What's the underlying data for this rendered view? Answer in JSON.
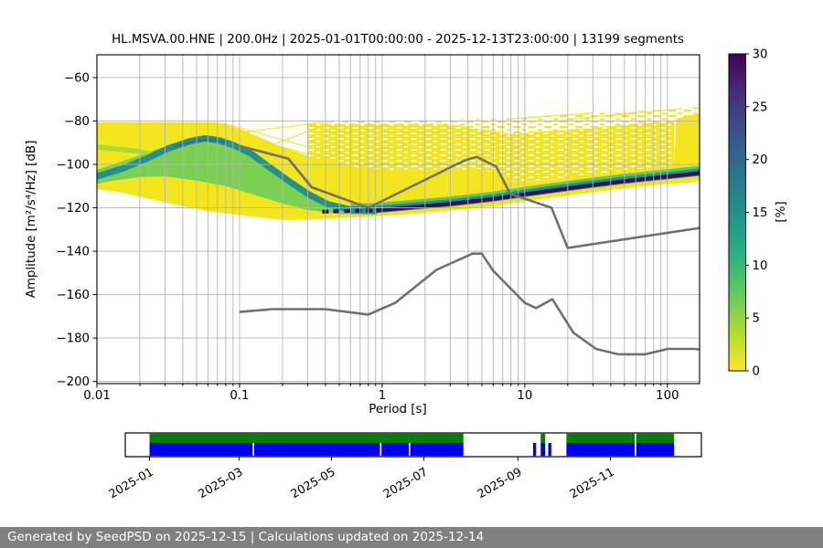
{
  "chart_data": {
    "type": "heatmap",
    "title": "HL.MSVA.00.HNE | 200.0Hz | 2025-01-01T00:00:00 - 2025-12-13T23:00:00 | 13199 segments",
    "xlabel": "Period [s]",
    "ylabel": "Amplitude [m²/s⁴/Hz] [dB]",
    "xscale": "log",
    "xlim": [
      0.01,
      168
    ],
    "ylim": [
      -201,
      -49.5
    ],
    "xticks": [
      {
        "v": 0.01,
        "label": "0.01"
      },
      {
        "v": 0.1,
        "label": "0.1"
      },
      {
        "v": 1,
        "label": "1"
      },
      {
        "v": 10,
        "label": "10"
      },
      {
        "v": 100,
        "label": "100"
      }
    ],
    "yticks": [
      {
        "v": -60,
        "label": "−60"
      },
      {
        "v": -80,
        "label": "−80"
      },
      {
        "v": -100,
        "label": "−100"
      },
      {
        "v": -120,
        "label": "−120"
      },
      {
        "v": -140,
        "label": "−140"
      },
      {
        "v": -160,
        "label": "−160"
      },
      {
        "v": -180,
        "label": "−180"
      },
      {
        "v": -200,
        "label": "−200"
      }
    ],
    "grid": {
      "vertical": "log major+minor",
      "horizontal": "major",
      "color": "#b3b3b3"
    },
    "colorbar": {
      "label": "[%]",
      "min": 0,
      "max": 30,
      "ticks": [
        {
          "v": 0,
          "label": "0"
        },
        {
          "v": 5,
          "label": "5"
        },
        {
          "v": 10,
          "label": "10"
        },
        {
          "v": 15,
          "label": "15"
        },
        {
          "v": 20,
          "label": "20"
        },
        {
          "v": 25,
          "label": "25"
        },
        {
          "v": 30,
          "label": "30"
        }
      ],
      "colormap": "viridis reversed (0=yellow, 30=dark purple)",
      "stops_top_to_bottom": [
        "#440154",
        "#472d7b",
        "#3b528b",
        "#2c728e",
        "#21918c",
        "#28ae80",
        "#5ec962",
        "#addc30",
        "#fde725"
      ]
    },
    "colors": {
      "yellow": "#f3e61e",
      "green_band": "#5ec962",
      "green_blob": "#7ad151",
      "green_streak": "#a8db34",
      "teal": "#21918c",
      "teal_core": "#287a8c",
      "dark": "#3a0d54",
      "noise_model_line": "#707070"
    },
    "noise_models": {
      "nhnm": [
        [
          0.1,
          -91.5
        ],
        [
          0.22,
          -97.4
        ],
        [
          0.32,
          -110.5
        ],
        [
          0.8,
          -120.0
        ],
        [
          3.8,
          -98.1
        ],
        [
          4.6,
          -96.5
        ],
        [
          6.3,
          -101.0
        ],
        [
          7.9,
          -113.5
        ],
        [
          15.4,
          -120.0
        ],
        [
          20.0,
          -138.5
        ],
        [
          168,
          -129.3
        ]
      ],
      "nlnm": [
        [
          0.1,
          -168.0
        ],
        [
          0.17,
          -166.7
        ],
        [
          0.4,
          -166.7
        ],
        [
          0.8,
          -169.2
        ],
        [
          1.24,
          -163.7
        ],
        [
          2.4,
          -148.6
        ],
        [
          4.3,
          -141.1
        ],
        [
          5.0,
          -141.1
        ],
        [
          6.0,
          -149.0
        ],
        [
          10.0,
          -163.8
        ],
        [
          12.0,
          -166.2
        ],
        [
          15.6,
          -162.1
        ],
        [
          21.9,
          -177.5
        ],
        [
          31.6,
          -185.0
        ],
        [
          45.0,
          -187.5
        ],
        [
          70.0,
          -187.5
        ],
        [
          101.0,
          -185.0
        ],
        [
          154.0,
          -185.0
        ],
        [
          168,
          -185.3
        ]
      ]
    },
    "histogram": {
      "yellow_solid": [
        [
          0.01,
          -80.5
        ],
        [
          0.07,
          -80.5
        ],
        [
          0.1,
          -83.5
        ],
        [
          0.2,
          -92
        ],
        [
          0.3,
          -96
        ],
        [
          0.7,
          -101.5
        ],
        [
          1.5,
          -102.8
        ],
        [
          3.5,
          -102.8
        ],
        [
          4.8,
          -102
        ],
        [
          6.5,
          -104.5
        ],
        [
          9,
          -107.5
        ],
        [
          12,
          -107.9
        ],
        [
          25,
          -105.2
        ],
        [
          50,
          -102.8
        ],
        [
          100,
          -100.8
        ],
        [
          112,
          -100
        ],
        [
          115,
          -79
        ],
        [
          140,
          -77.5
        ],
        [
          168,
          -76.5
        ],
        [
          168,
          -107.5
        ],
        [
          140,
          -108.5
        ],
        [
          100,
          -109
        ],
        [
          50,
          -111
        ],
        [
          25,
          -113.5
        ],
        [
          12,
          -116.3
        ],
        [
          9,
          -117.5
        ],
        [
          6.5,
          -119
        ],
        [
          4.8,
          -120
        ],
        [
          3.5,
          -120.8
        ],
        [
          1.5,
          -123
        ],
        [
          0.7,
          -124.3
        ],
        [
          0.45,
          -124.8
        ],
        [
          0.3,
          -125.6
        ],
        [
          0.2,
          -125.6
        ],
        [
          0.12,
          -124
        ],
        [
          0.06,
          -121.5
        ],
        [
          0.03,
          -117.5
        ],
        [
          0.015,
          -113
        ],
        [
          0.01,
          -111.5
        ]
      ],
      "yellow_dense": [
        [
          0.3,
          -81.5
        ],
        [
          3,
          -81.5
        ],
        [
          8,
          -86
        ],
        [
          25,
          -83.5
        ],
        [
          80,
          -80.5
        ],
        [
          112,
          -79.8
        ],
        [
          112,
          -100
        ],
        [
          100,
          -100.8
        ],
        [
          50,
          -102.8
        ],
        [
          25,
          -105.2
        ],
        [
          12,
          -107.9
        ],
        [
          9,
          -107.5
        ],
        [
          6.5,
          -104.5
        ],
        [
          4.8,
          -102
        ],
        [
          3.5,
          -102.8
        ],
        [
          1.5,
          -102.8
        ],
        [
          0.7,
          -101.5
        ],
        [
          0.3,
          -96
        ]
      ],
      "yellow_sparse": [
        [
          0.28,
          -80.5
        ],
        [
          2,
          -79.8
        ],
        [
          8,
          -78.5
        ],
        [
          25,
          -76.5
        ],
        [
          80,
          -75
        ],
        [
          168,
          -73.5
        ],
        [
          168,
          -76.5
        ],
        [
          140,
          -77.5
        ],
        [
          115,
          -79
        ],
        [
          80,
          -80.5
        ],
        [
          25,
          -83.5
        ],
        [
          8,
          -86
        ],
        [
          3,
          -81.5
        ],
        [
          0.3,
          -81.5
        ]
      ],
      "green_blob": [
        [
          0.01,
          -102.5
        ],
        [
          0.016,
          -98
        ],
        [
          0.025,
          -93.5
        ],
        [
          0.04,
          -89.5
        ],
        [
          0.055,
          -86.8
        ],
        [
          0.075,
          -87.5
        ],
        [
          0.1,
          -91.5
        ],
        [
          0.14,
          -97
        ],
        [
          0.2,
          -104
        ],
        [
          0.28,
          -111
        ],
        [
          0.4,
          -116.5
        ],
        [
          0.6,
          -119.3
        ],
        [
          0.9,
          -120.3
        ],
        [
          0.9,
          -123.3
        ],
        [
          0.5,
          -122.8
        ],
        [
          0.3,
          -121
        ],
        [
          0.2,
          -118
        ],
        [
          0.12,
          -113.5
        ],
        [
          0.08,
          -110
        ],
        [
          0.05,
          -107.5
        ],
        [
          0.03,
          -105.5
        ],
        [
          0.02,
          -105.8
        ],
        [
          0.013,
          -107.5
        ],
        [
          0.01,
          -109
        ]
      ],
      "green_streak": [
        [
          0.01,
          -90.8
        ],
        [
          0.018,
          -92.6
        ],
        [
          0.026,
          -94.3
        ],
        [
          0.026,
          -96.2
        ],
        [
          0.017,
          -94.6
        ],
        [
          0.01,
          -93.2
        ]
      ],
      "mode_ridge": [
        [
          0.01,
          -105.5
        ],
        [
          0.015,
          -102
        ],
        [
          0.022,
          -97.5
        ],
        [
          0.032,
          -92.5
        ],
        [
          0.045,
          -89.3
        ],
        [
          0.057,
          -88
        ],
        [
          0.07,
          -88.8
        ],
        [
          0.09,
          -91
        ],
        [
          0.12,
          -95
        ],
        [
          0.16,
          -101
        ],
        [
          0.22,
          -107.5
        ],
        [
          0.3,
          -113.5
        ],
        [
          0.42,
          -118.5
        ],
        [
          0.6,
          -120.8
        ],
        [
          0.9,
          -121.4
        ]
      ],
      "ridge_core": [
        [
          0.035,
          -91.8
        ],
        [
          0.05,
          -89
        ],
        [
          0.065,
          -88.6
        ],
        [
          0.08,
          -89.8
        ]
      ],
      "dark_band": [
        [
          0.38,
          -121.8
        ],
        [
          0.6,
          -121.4
        ],
        [
          0.9,
          -121.2
        ],
        [
          1.5,
          -119.9
        ],
        [
          3,
          -118.2
        ],
        [
          6,
          -115.9
        ],
        [
          12,
          -113
        ],
        [
          25,
          -110.2
        ],
        [
          50,
          -107.7
        ],
        [
          100,
          -105.6
        ],
        [
          168,
          -104
        ]
      ],
      "streaks": [
        [
          [
            0.075,
            -80.8
          ],
          [
            0.5,
            -96
          ]
        ],
        [
          [
            0.12,
            -95
          ],
          [
            0.42,
            -81
          ]
        ],
        [
          [
            0.095,
            -85.5
          ],
          [
            0.4,
            -80.5
          ]
        ],
        [
          [
            0.15,
            -90
          ],
          [
            0.55,
            -99.5
          ]
        ],
        [
          [
            8,
            -79
          ],
          [
            30,
            -76.3
          ]
        ],
        [
          [
            14,
            -80.5
          ],
          [
            60,
            -76
          ]
        ],
        [
          [
            40,
            -77.5
          ],
          [
            130,
            -74.3
          ]
        ]
      ]
    }
  },
  "timeline": {
    "axis_start": "2024-12-16",
    "axis_end": "2025-12-31",
    "green_color": "#008000",
    "blue_color": "#0000ee",
    "green_segments": [
      [
        "2025-01-01",
        "2025-07-27"
      ],
      [
        "2025-09-16",
        "2025-09-19"
      ],
      [
        "2025-10-03",
        "2025-11-17"
      ],
      [
        "2025-11-18",
        "2025-12-13"
      ]
    ],
    "blue_segments": [
      [
        "2025-01-01",
        "2025-03-10"
      ],
      [
        "2025-03-11",
        "2025-06-02"
      ],
      [
        "2025-06-03",
        "2025-06-21"
      ],
      [
        "2025-06-22",
        "2025-07-27"
      ],
      [
        "2025-09-11",
        "2025-09-13"
      ],
      [
        "2025-09-16",
        "2025-09-19"
      ],
      [
        "2025-09-21",
        "2025-09-23"
      ],
      [
        "2025-10-03",
        "2025-11-17"
      ],
      [
        "2025-11-18",
        "2025-12-13"
      ]
    ],
    "ticks": [
      {
        "date": "2025-01-01",
        "label": "2025-01"
      },
      {
        "date": "2025-03-01",
        "label": "2025-03"
      },
      {
        "date": "2025-05-01",
        "label": "2025-05"
      },
      {
        "date": "2025-07-01",
        "label": "2025-07"
      },
      {
        "date": "2025-09-01",
        "label": "2025-09"
      },
      {
        "date": "2025-11-01",
        "label": "2025-11"
      }
    ]
  },
  "footer": {
    "text": "Generated by SeedPSD on 2025-12-15 | Calculations updated on 2025-12-14",
    "bg": "#808080",
    "fg": "#ffffff"
  }
}
